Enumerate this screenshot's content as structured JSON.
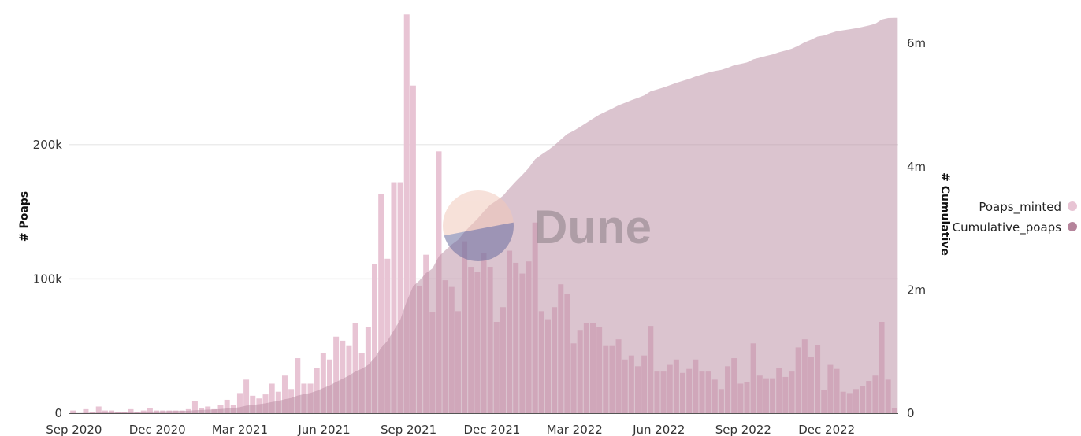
{
  "chart_data": {
    "type": "bar+area",
    "title": "",
    "xlabel": "",
    "ylabel_left": "# Poaps",
    "ylabel_right": "# Cumulative",
    "x_ticks": [
      "Sep 2020",
      "Dec 2020",
      "Mar 2021",
      "Jun 2021",
      "Sep 2021",
      "Dec 2021",
      "Mar 2022",
      "Jun 2022",
      "Sep 2022",
      "Dec 2022"
    ],
    "x_tick_dates": [
      "2020-09-01",
      "2020-12-01",
      "2021-03-01",
      "2021-06-01",
      "2021-09-01",
      "2021-12-01",
      "2022-03-01",
      "2022-06-01",
      "2022-09-01",
      "2022-12-01"
    ],
    "y_left_ticks": [
      {
        "value": 0,
        "label": "0"
      },
      {
        "value": 100000,
        "label": "100k"
      },
      {
        "value": 200000,
        "label": "200k"
      }
    ],
    "y_right_ticks": [
      {
        "value": 0,
        "label": "0"
      },
      {
        "value": 2000000,
        "label": "2m"
      },
      {
        "value": 4000000,
        "label": "4m"
      },
      {
        "value": 6000000,
        "label": "6m"
      }
    ],
    "ylim_left": [
      0,
      296000
    ],
    "ylim_right": [
      0,
      6450000
    ],
    "grid": true,
    "legend_placement": "right",
    "x": [
      "2020-08-31",
      "2020-09-07",
      "2020-09-14",
      "2020-09-21",
      "2020-09-28",
      "2020-10-05",
      "2020-10-12",
      "2020-10-19",
      "2020-10-26",
      "2020-11-02",
      "2020-11-09",
      "2020-11-16",
      "2020-11-23",
      "2020-11-30",
      "2020-12-07",
      "2020-12-14",
      "2020-12-21",
      "2020-12-28",
      "2021-01-04",
      "2021-01-11",
      "2021-01-18",
      "2021-01-25",
      "2021-02-01",
      "2021-02-08",
      "2021-02-15",
      "2021-02-22",
      "2021-03-01",
      "2021-03-08",
      "2021-03-15",
      "2021-03-22",
      "2021-03-29",
      "2021-04-05",
      "2021-04-12",
      "2021-04-19",
      "2021-04-26",
      "2021-05-03",
      "2021-05-10",
      "2021-05-17",
      "2021-05-24",
      "2021-05-31",
      "2021-06-07",
      "2021-06-14",
      "2021-06-21",
      "2021-06-28",
      "2021-07-05",
      "2021-07-12",
      "2021-07-19",
      "2021-07-26",
      "2021-08-02",
      "2021-08-09",
      "2021-08-16",
      "2021-08-23",
      "2021-08-30",
      "2021-09-06",
      "2021-09-13",
      "2021-09-20",
      "2021-09-27",
      "2021-10-04",
      "2021-10-11",
      "2021-10-18",
      "2021-10-25",
      "2021-11-01",
      "2021-11-08",
      "2021-11-15",
      "2021-11-22",
      "2021-11-29",
      "2021-12-06",
      "2021-12-13",
      "2021-12-20",
      "2021-12-27",
      "2022-01-03",
      "2022-01-10",
      "2022-01-17",
      "2022-01-24",
      "2022-01-31",
      "2022-02-07",
      "2022-02-14",
      "2022-02-21",
      "2022-02-28",
      "2022-03-07",
      "2022-03-14",
      "2022-03-21",
      "2022-03-28",
      "2022-04-04",
      "2022-04-11",
      "2022-04-18",
      "2022-04-25",
      "2022-05-02",
      "2022-05-09",
      "2022-05-16",
      "2022-05-23",
      "2022-05-30",
      "2022-06-06",
      "2022-06-13",
      "2022-06-20",
      "2022-06-27",
      "2022-07-04",
      "2022-07-11",
      "2022-07-18",
      "2022-07-25",
      "2022-08-01",
      "2022-08-08",
      "2022-08-15",
      "2022-08-22",
      "2022-08-29",
      "2022-09-05",
      "2022-09-12",
      "2022-09-19",
      "2022-09-26",
      "2022-10-03",
      "2022-10-10",
      "2022-10-17",
      "2022-10-24",
      "2022-10-31",
      "2022-11-07",
      "2022-11-14",
      "2022-11-21",
      "2022-11-28",
      "2022-12-05",
      "2022-12-12",
      "2022-12-19",
      "2022-12-26",
      "2023-01-02",
      "2023-01-09",
      "2023-01-16",
      "2023-01-23",
      "2023-01-30",
      "2023-02-06",
      "2023-02-13"
    ],
    "series": [
      {
        "name": "Poaps_minted",
        "type": "bar",
        "axis": "left",
        "color": "#e8c4d4",
        "values": [
          2000,
          0,
          3000,
          1000,
          5000,
          2000,
          2000,
          1000,
          1000,
          3000,
          1000,
          2000,
          4000,
          2000,
          2000,
          2000,
          2000,
          2000,
          3000,
          9000,
          4000,
          5000,
          3000,
          6000,
          10000,
          6000,
          15000,
          25000,
          13000,
          11000,
          14000,
          22000,
          16000,
          28000,
          18000,
          41000,
          22000,
          22000,
          34000,
          45000,
          40000,
          57000,
          54000,
          50000,
          67000,
          45000,
          64000,
          111000,
          163000,
          115000,
          172000,
          172000,
          297000,
          244000,
          95000,
          118000,
          75000,
          195000,
          99000,
          94000,
          76000,
          128000,
          109000,
          105000,
          119000,
          109000,
          68000,
          79000,
          121000,
          112000,
          104000,
          113000,
          142000,
          76000,
          70000,
          79000,
          96000,
          89000,
          52000,
          62000,
          67000,
          67000,
          64000,
          50000,
          50000,
          55000,
          40000,
          43000,
          35000,
          43000,
          65000,
          31000,
          31000,
          36000,
          40000,
          30000,
          33000,
          40000,
          31000,
          31000,
          25000,
          18000,
          35000,
          41000,
          22000,
          23000,
          52000,
          28000,
          26000,
          26000,
          34000,
          27000,
          31000,
          49000,
          55000,
          42000,
          51000,
          17000,
          36000,
          33000,
          16000,
          15000,
          18000,
          20000,
          24000,
          28000,
          68000,
          25000,
          4000
        ]
      },
      {
        "name": "Cumulative_poaps",
        "type": "area",
        "axis": "right",
        "color": "#b5849b"
      }
    ],
    "watermark": "Dune"
  }
}
